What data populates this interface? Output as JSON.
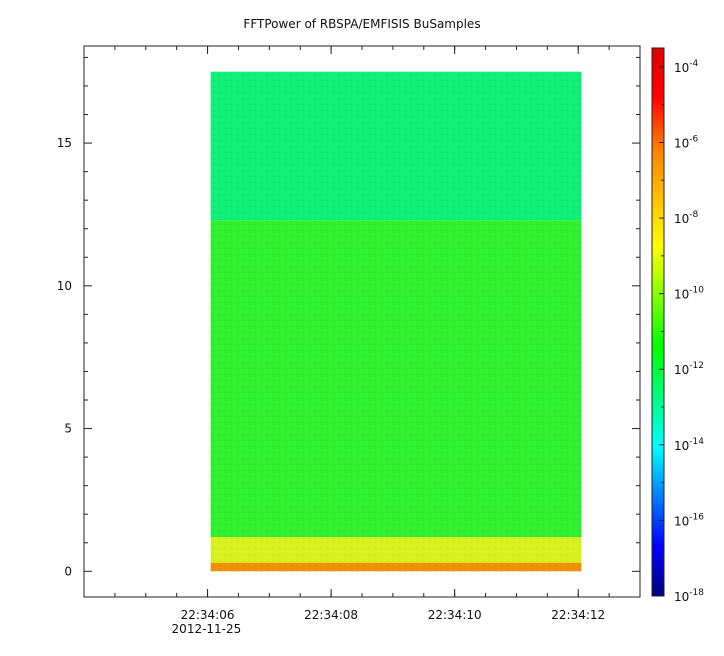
{
  "chart_data": {
    "type": "heatmap",
    "title": "FFTPower of RBSPA/EMFISIS  BuSamples",
    "xlabel": "",
    "ylabel": "",
    "x_ticks": [
      {
        "label": "22:34:06",
        "sub": "2012-11-25",
        "t": 6
      },
      {
        "label": "22:34:08",
        "sub": "",
        "t": 8
      },
      {
        "label": "22:34:10",
        "sub": "",
        "t": 10
      },
      {
        "label": "22:34:12",
        "sub": "",
        "t": 12
      }
    ],
    "x_minor_ticks": [
      4.5,
      5,
      5.5,
      6,
      6.5,
      7,
      7.5,
      8,
      8.5,
      9,
      9.5,
      10,
      10.5,
      11,
      11.5,
      12,
      12.5,
      13
    ],
    "xlim": [
      4.0,
      13.0
    ],
    "data_x_range": [
      6.05,
      12.05
    ],
    "y_ticks": [
      0,
      5,
      10,
      15
    ],
    "ylim": [
      -0.9,
      18.4
    ],
    "data_y_range": [
      0,
      17.5
    ],
    "colorbar": {
      "scale": "log",
      "range_exp": [
        -18,
        -3.5
      ],
      "ticks": [
        {
          "base": "10",
          "exp": "-4",
          "value_exp": -4
        },
        {
          "base": "10",
          "exp": "-6",
          "value_exp": -6
        },
        {
          "base": "10",
          "exp": "-8",
          "value_exp": -8
        },
        {
          "base": "10",
          "exp": "-10",
          "value_exp": -10
        },
        {
          "base": "10",
          "exp": "-12",
          "value_exp": -12
        },
        {
          "base": "10",
          "exp": "-14",
          "value_exp": -14
        },
        {
          "base": "10",
          "exp": "-16",
          "value_exp": -16
        },
        {
          "base": "10",
          "exp": "-18",
          "value_exp": -18
        }
      ],
      "colors": [
        "#00007f",
        "#0000ff",
        "#007fff",
        "#00ffff",
        "#00ff7f",
        "#00ff00",
        "#7fff00",
        "#ffff00",
        "#ffbf00",
        "#ff7f00",
        "#ff0000",
        "#df0000"
      ]
    },
    "bands": [
      {
        "y_range": [
          12.3,
          17.5
        ],
        "color": "#10ef78",
        "level_exp": -12.3
      },
      {
        "y_range": [
          1.2,
          12.3
        ],
        "color": "#30ef30",
        "level_exp": -10.2
      },
      {
        "y_range": [
          0.3,
          1.2
        ],
        "color": "#d8f020",
        "level_exp": -8.5
      },
      {
        "y_range": [
          0.0,
          0.3
        ],
        "color": "#f09000",
        "level_exp": -6.5
      }
    ]
  }
}
